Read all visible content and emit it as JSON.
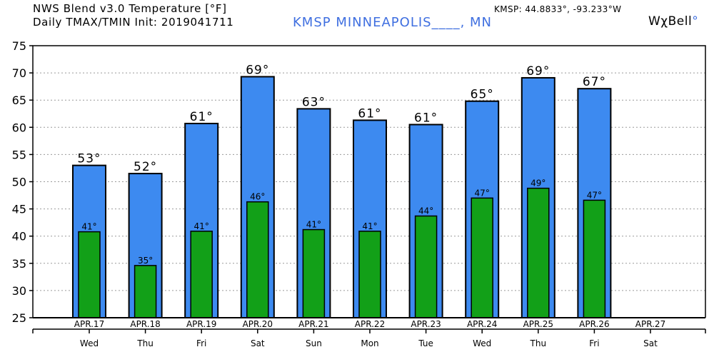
{
  "header": {
    "title_line1": "NWS Blend v3.0 Temperature [°F]",
    "title_line2": "Daily TMAX/TMIN Init: 2019041711",
    "station": "KMSP MINNEAPOLIS____, MN",
    "coords": "KMSP: 44.8833°, -93.233°W",
    "brand": "WχBell",
    "brand_mark": "°"
  },
  "colors": {
    "tmax": "#3d8af0",
    "tmin": "#12a018",
    "outline": "#000000",
    "grid": "#9a9a9a",
    "station_text": "#3f6fe0"
  },
  "chart_data": {
    "type": "bar",
    "title": "NWS Blend v3.0 Temperature [°F]",
    "subtitle": "Daily TMAX/TMIN Init: 2019041711",
    "categories": [
      "APR.17",
      "APR.18",
      "APR.19",
      "APR.20",
      "APR.21",
      "APR.22",
      "APR.23",
      "APR.24",
      "APR.25",
      "APR.26",
      "APR.27"
    ],
    "weekdays": [
      "Wed",
      "Thu",
      "Fri",
      "Sat",
      "Sun",
      "Mon",
      "Tue",
      "Wed",
      "Thu",
      "Fri",
      "Sat"
    ],
    "series": [
      {
        "key": "tmax",
        "values": [
          53,
          51.5,
          60.7,
          69.3,
          63.4,
          61.3,
          60.5,
          64.8,
          69.1,
          67.1,
          null
        ],
        "labels": [
          "53°",
          "52°",
          "61°",
          "69°",
          "63°",
          "61°",
          "61°",
          "65°",
          "69°",
          "67°",
          ""
        ]
      },
      {
        "key": "tmin",
        "values": [
          40.8,
          34.6,
          40.9,
          46.3,
          41.2,
          40.9,
          43.7,
          47,
          48.8,
          46.6,
          null
        ],
        "labels": [
          "41°",
          "35°",
          "41°",
          "46°",
          "41°",
          "41°",
          "44°",
          "47°",
          "49°",
          "47°",
          ""
        ]
      }
    ],
    "ylim": [
      25,
      75
    ],
    "yticks": [
      25,
      30,
      35,
      40,
      45,
      50,
      55,
      60,
      65,
      70,
      75
    ],
    "ytick_labels": [
      "25",
      "30",
      "35",
      "40",
      "45",
      "50",
      "55",
      "60",
      "65",
      "70",
      "75"
    ],
    "grid": true
  }
}
